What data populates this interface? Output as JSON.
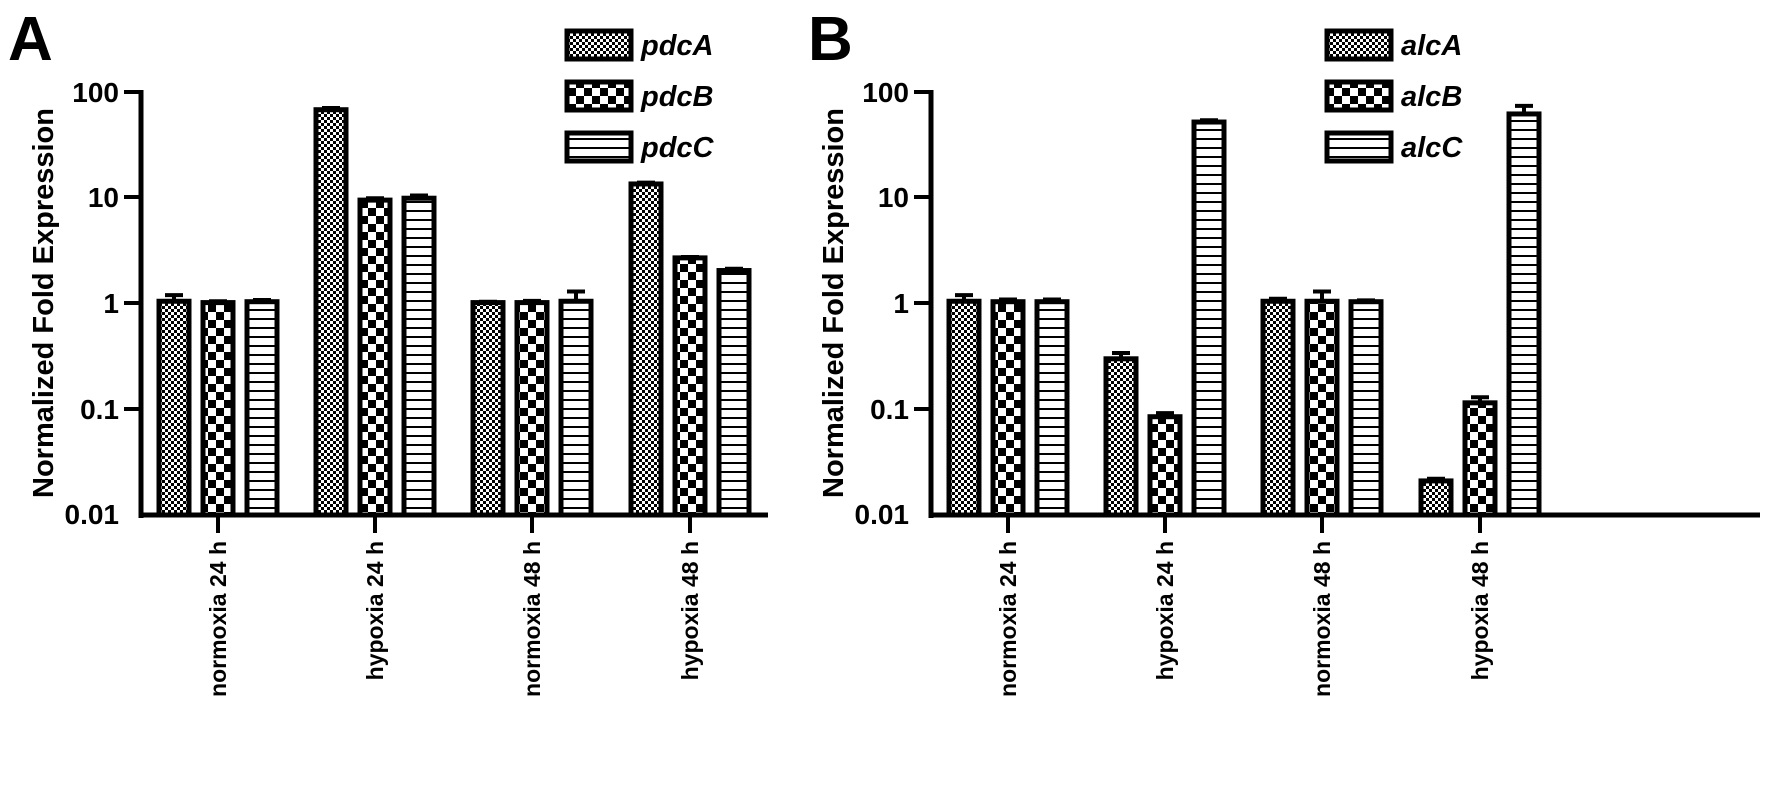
{
  "chart_data": [
    {
      "panel": "A",
      "type": "bar",
      "scale": "log",
      "ylabel": "Normalized Fold Expression",
      "ylim": [
        0.01,
        100
      ],
      "yticks": [
        "0.01",
        "0.1",
        "1",
        "10",
        "100"
      ],
      "categories": [
        "normoxia 24 h",
        "hypoxia 24 h",
        "normoxia 48 h",
        "hypoxia 48 h"
      ],
      "legend_position": "top-right",
      "series": [
        {
          "name": "pdcA",
          "pattern": "fine-check",
          "values": [
            1.05,
            68,
            1.02,
            13.5
          ],
          "errors": [
            0.15,
            2.5,
            0.02,
            0.4
          ]
        },
        {
          "name": "pdcB",
          "pattern": "coarse-check",
          "values": [
            1.02,
            9.5,
            1.02,
            2.7
          ],
          "errors": [
            0.03,
            0.4,
            0.04,
            0.05
          ]
        },
        {
          "name": "pdcC",
          "pattern": "h-stripes",
          "values": [
            1.04,
            9.9,
            1.05,
            2.05
          ],
          "errors": [
            0.04,
            0.6,
            0.25,
            0.08
          ]
        }
      ]
    },
    {
      "panel": "B",
      "type": "bar",
      "scale": "log",
      "ylabel": "Normalized Fold Expression",
      "ylim": [
        0.01,
        100
      ],
      "yticks": [
        "0.01",
        "0.1",
        "1",
        "10",
        "100"
      ],
      "categories": [
        "normoxia 24 h",
        "hypoxia 24 h",
        "normoxia 48 h",
        "hypoxia 48 h"
      ],
      "legend_position": "top-right",
      "series": [
        {
          "name": "alcA",
          "pattern": "fine-check",
          "values": [
            1.05,
            0.3,
            1.05,
            0.021
          ],
          "errors": [
            0.15,
            0.04,
            0.06,
            0.001
          ]
        },
        {
          "name": "alcB",
          "pattern": "coarse-check",
          "values": [
            1.04,
            0.085,
            1.05,
            0.115
          ],
          "errors": [
            0.05,
            0.007,
            0.25,
            0.015
          ]
        },
        {
          "name": "alcC",
          "pattern": "h-stripes",
          "values": [
            1.04,
            52,
            1.04,
            62
          ],
          "errors": [
            0.05,
            2.0,
            0.03,
            12
          ]
        }
      ]
    }
  ]
}
